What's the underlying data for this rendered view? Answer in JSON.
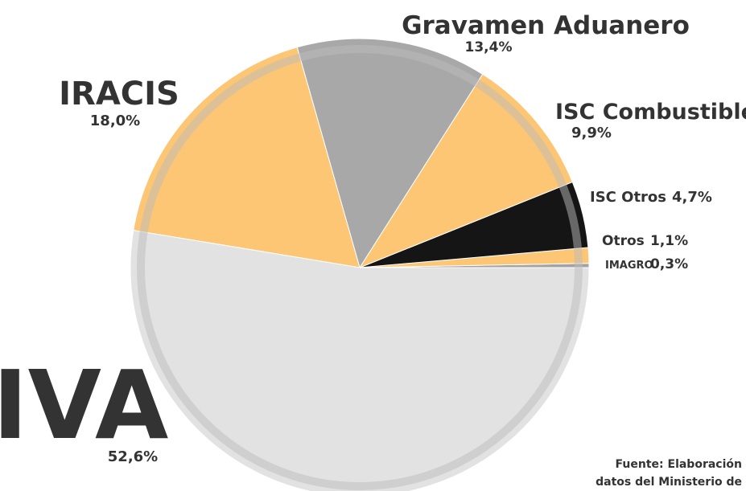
{
  "chart_data": {
    "type": "pie",
    "categories": [
      "IMAGRO",
      "Otros",
      "ISC Otros",
      "ISC Combustibles",
      "Gravamen Aduanero",
      "IRACIS",
      "IVA"
    ],
    "values": [
      0.3,
      1.1,
      4.7,
      9.9,
      13.4,
      18.0,
      52.6
    ],
    "value_labels": [
      "0,3%",
      "1,1%",
      "4,7%",
      "9,9%",
      "13,4%",
      "18,0%",
      "52,6%"
    ],
    "colors": [
      "#a3a3a3",
      "#fcc674",
      "#151515",
      "#fcc674",
      "#a8a8a8",
      "#fcc674",
      "#e2e2e2"
    ],
    "source": [
      "Fuente: Elaboración",
      "datos del Ministerio de"
    ]
  }
}
